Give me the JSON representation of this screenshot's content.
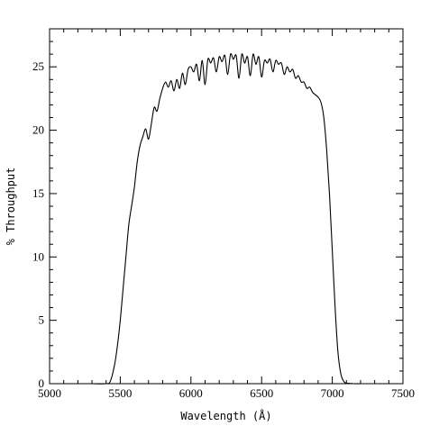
{
  "chart_data": {
    "type": "line",
    "title": "",
    "xlabel": "Wavelength (Å)",
    "ylabel": "% Throughput",
    "xlim": [
      5000,
      7500
    ],
    "ylim": [
      0,
      28
    ],
    "xticks": [
      5000,
      5500,
      6000,
      6500,
      7000,
      7500
    ],
    "yticks": [
      0,
      5,
      10,
      15,
      20,
      25
    ],
    "grid": false,
    "legend": "none",
    "series": [
      {
        "color": "#000000",
        "x": [
          5300,
          5400,
          5430,
          5460,
          5480,
          5500,
          5520,
          5540,
          5560,
          5580,
          5600,
          5620,
          5640,
          5660,
          5680,
          5700,
          5720,
          5740,
          5760,
          5780,
          5800,
          5820,
          5840,
          5860,
          5880,
          5900,
          5920,
          5940,
          5960,
          5980,
          6000,
          6020,
          6040,
          6060,
          6080,
          6100,
          6120,
          6140,
          6160,
          6180,
          6200,
          6220,
          6240,
          6260,
          6280,
          6300,
          6320,
          6340,
          6360,
          6380,
          6400,
          6420,
          6440,
          6460,
          6480,
          6500,
          6520,
          6540,
          6560,
          6580,
          6600,
          6620,
          6640,
          6660,
          6680,
          6700,
          6720,
          6740,
          6760,
          6780,
          6800,
          6820,
          6840,
          6860,
          6880,
          6900,
          6920,
          6940,
          6960,
          6980,
          7000,
          7020,
          7040,
          7060,
          7080,
          7100,
          7150,
          7200
        ],
        "y": [
          0,
          0,
          0.2,
          1.5,
          3,
          5,
          7.5,
          10,
          12.5,
          14,
          15.5,
          17.5,
          18.8,
          19.5,
          20.1,
          19.3,
          20.5,
          21.8,
          21.5,
          22.5,
          23.3,
          23.8,
          23.4,
          23.9,
          23.1,
          24,
          23.3,
          24.5,
          23.6,
          24.8,
          25,
          24.6,
          25.2,
          23.9,
          25.5,
          23.6,
          25.6,
          25.3,
          25.7,
          24.6,
          25.8,
          25.4,
          25.9,
          24.4,
          26,
          25.6,
          25.9,
          24.1,
          26,
          25.3,
          25.8,
          24.3,
          26,
          25.2,
          25.8,
          24.2,
          25.5,
          25.3,
          25.6,
          24.6,
          25.5,
          25.2,
          25.3,
          24.4,
          25,
          24.6,
          24.8,
          24.1,
          24.3,
          23.8,
          23.8,
          23.3,
          23.4,
          23,
          22.8,
          22.6,
          22.2,
          21,
          18.5,
          15,
          10.5,
          6,
          2.5,
          0.8,
          0.2,
          0.05,
          0,
          0
        ]
      }
    ]
  }
}
